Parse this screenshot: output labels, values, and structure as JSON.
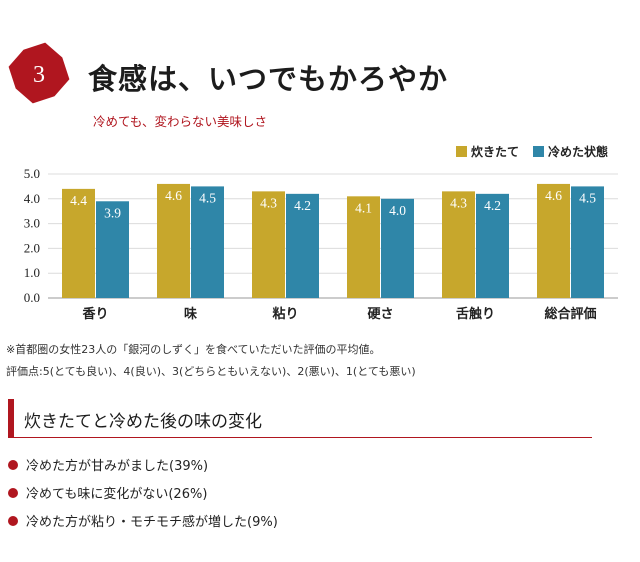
{
  "header": {
    "badge_number": "3",
    "title": "食感は、いつでもかろやか",
    "subtitle": "冷めても、変わらない美味しさ"
  },
  "colors": {
    "accent": "#b0161f",
    "series_fresh": "#c7a72c",
    "series_cold": "#2f86a8"
  },
  "chart_data": {
    "type": "bar",
    "categories": [
      "香り",
      "味",
      "粘り",
      "硬さ",
      "舌触り",
      "総合評価"
    ],
    "series": [
      {
        "name": "炊きたて",
        "values": [
          4.4,
          4.6,
          4.3,
          4.1,
          4.3,
          4.6
        ],
        "color": "#c7a72c"
      },
      {
        "name": "冷めた状態",
        "values": [
          3.9,
          4.5,
          4.2,
          4.0,
          4.2,
          4.5
        ],
        "color": "#2f86a8"
      }
    ],
    "value_labels": [
      [
        "4.4",
        "4.6",
        "4.3",
        "4.1",
        "4.3",
        "4.6"
      ],
      [
        "3.9",
        "4.5",
        "4.2",
        "4.0",
        "4.2",
        "4.5"
      ]
    ],
    "y_ticks": [
      "0.0",
      "1.0",
      "2.0",
      "3.0",
      "4.0",
      "5.0"
    ],
    "ylim": [
      0,
      5
    ],
    "grid": true,
    "legend_position": "top-right"
  },
  "notes": {
    "line1": "※首都圏の女性23人の「銀河のしずく」を食べていただいた評価の平均値。",
    "line2": "評価点:5(とても良い)、4(良い)、3(どちらともいえない)、2(悪い)、1(とても悪い)"
  },
  "section": {
    "heading": "炊きたてと冷めた後の味の変化",
    "results": [
      "冷めた方が甘みがました(39%)",
      "冷めても味に変化がない(26%)",
      "冷めた方が粘り・モチモチ感が増した(9%)"
    ]
  }
}
